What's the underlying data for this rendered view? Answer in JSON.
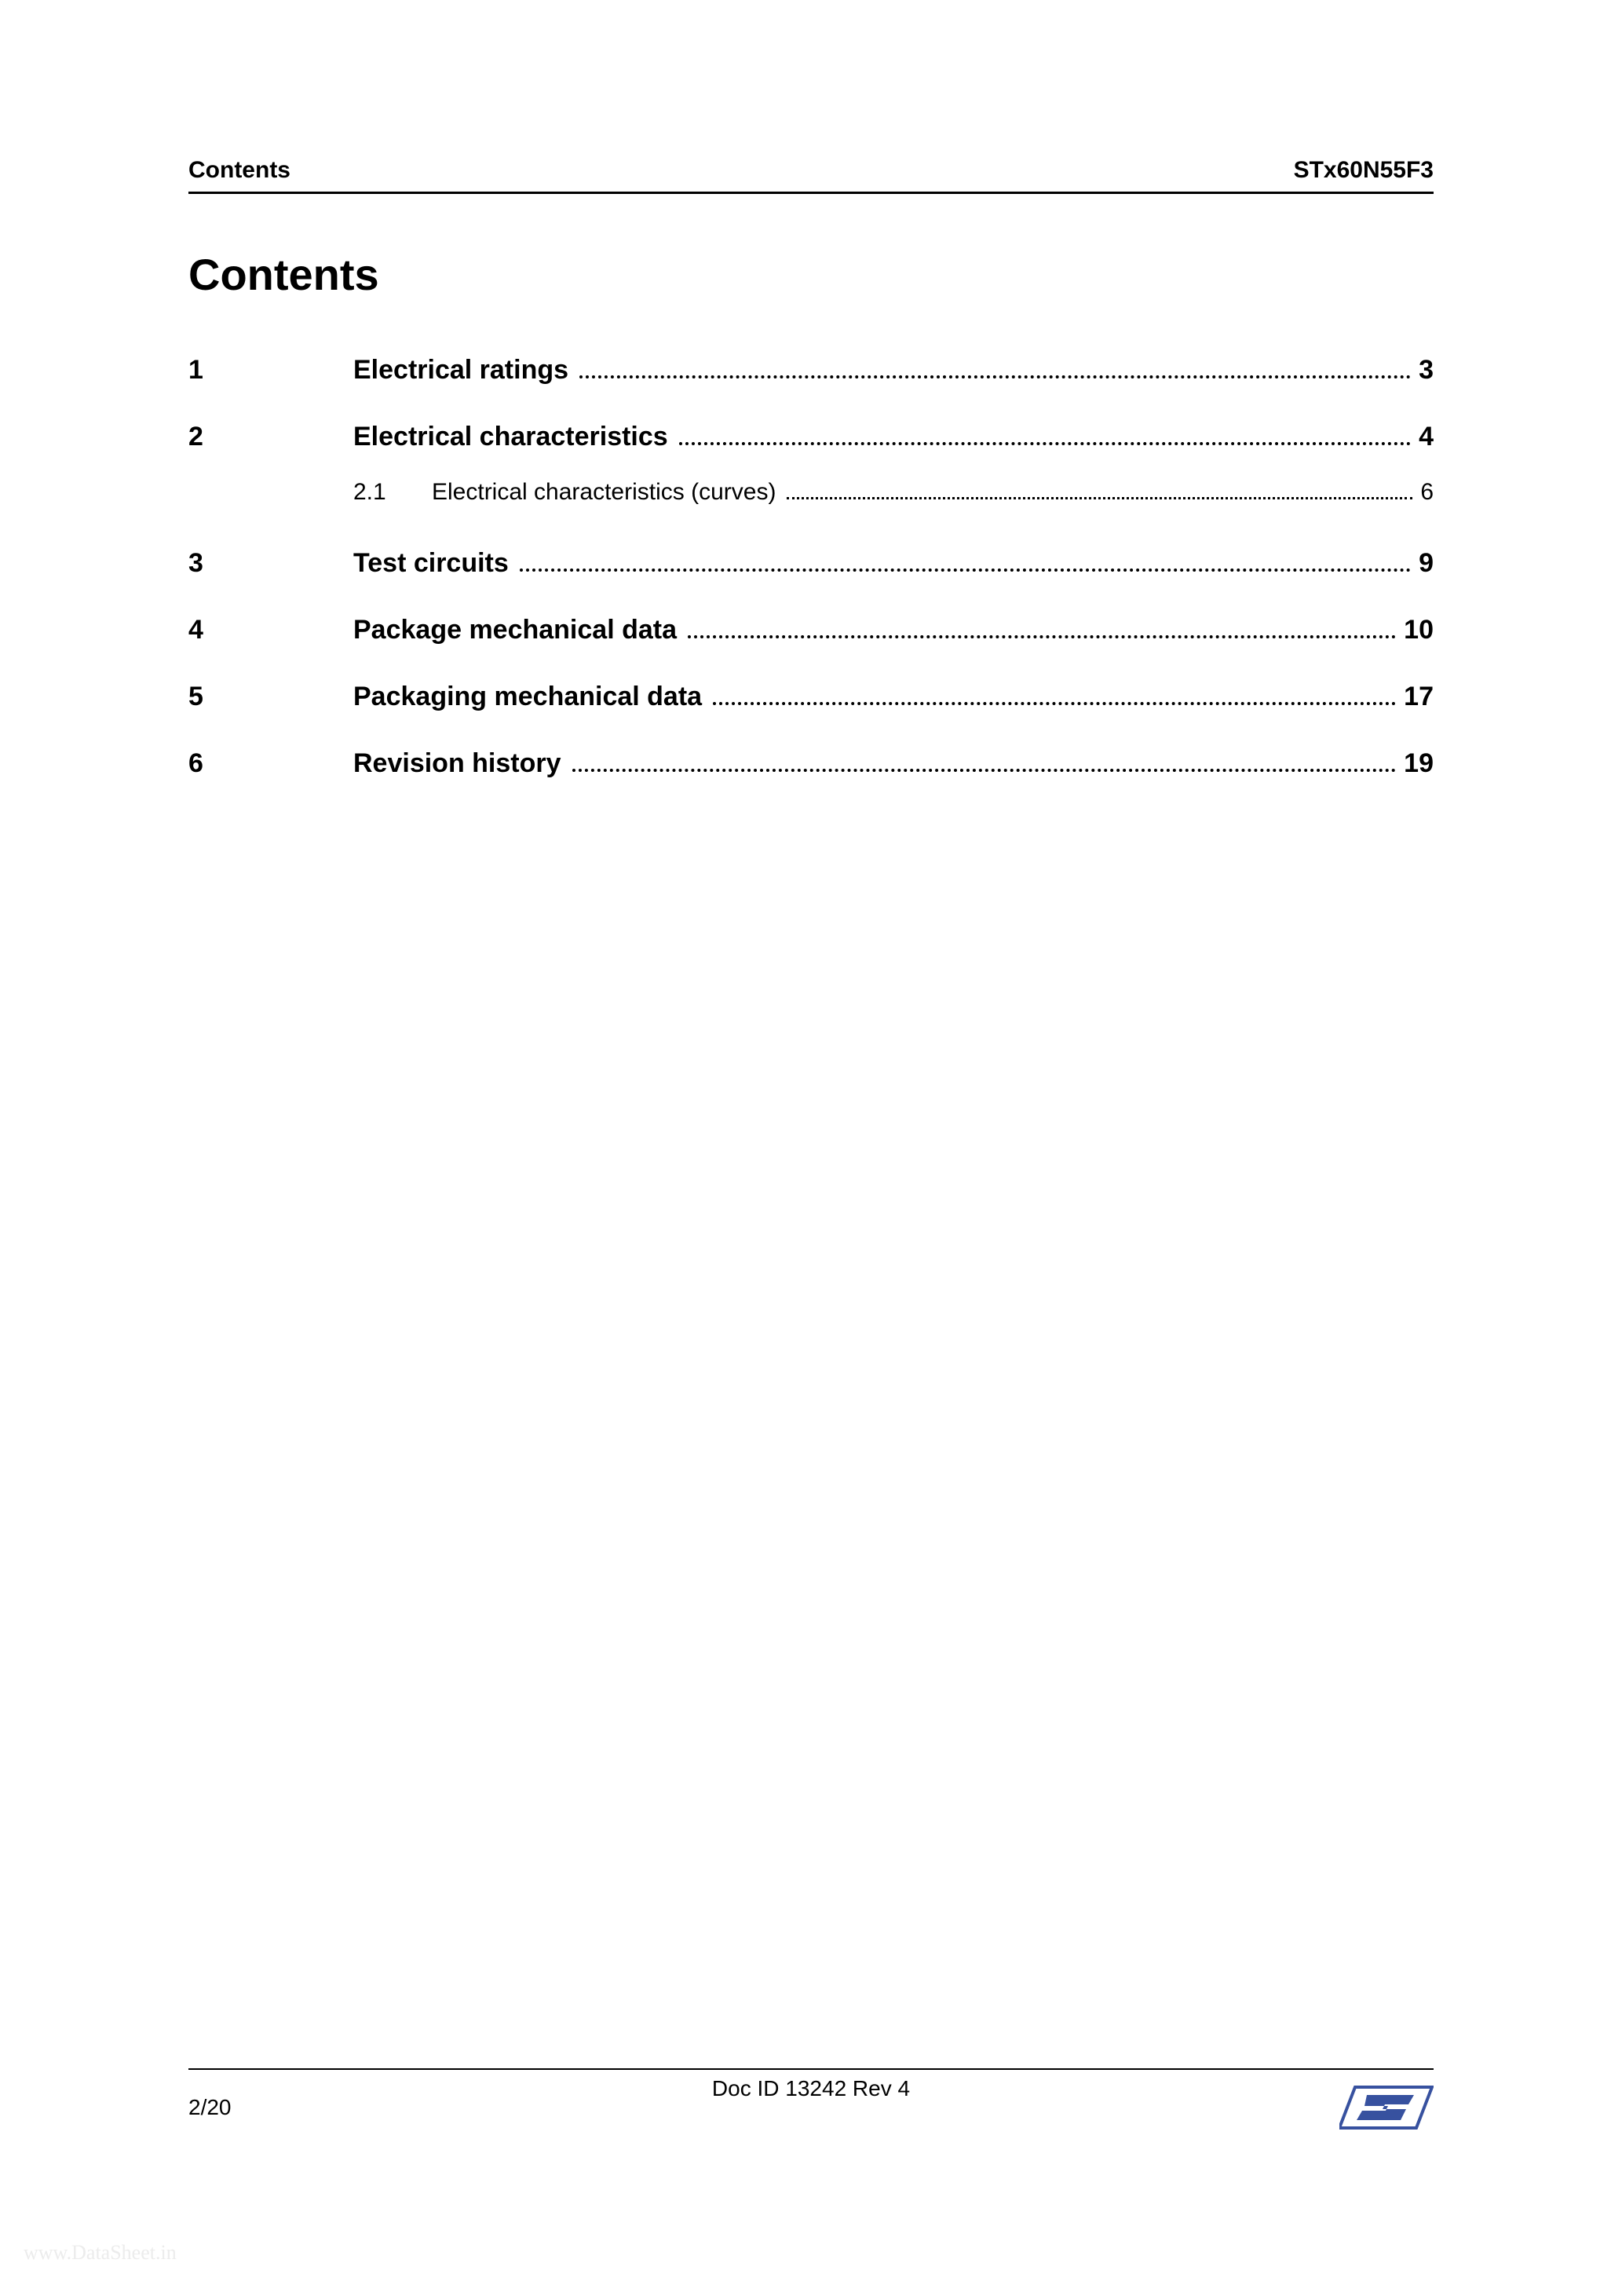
{
  "header": {
    "left": "Contents",
    "right": "STx60N55F3"
  },
  "title": "Contents",
  "toc": [
    {
      "num": "1",
      "text": "Electrical ratings",
      "page": "3"
    },
    {
      "num": "2",
      "text": "Electrical characteristics",
      "page": "4",
      "sub": [
        {
          "num": "2.1",
          "text": "Electrical characteristics (curves)",
          "page": "6"
        }
      ]
    },
    {
      "num": "3",
      "text": "Test circuits",
      "page": "9"
    },
    {
      "num": "4",
      "text": "Package mechanical data",
      "page": "10"
    },
    {
      "num": "5",
      "text": "Packaging mechanical data",
      "page": "17"
    },
    {
      "num": "6",
      "text": "Revision history",
      "page": "19"
    }
  ],
  "footer": {
    "left": "2/20",
    "center": "Doc ID 13242 Rev 4"
  },
  "watermark": "www.DataSheet.in",
  "logo": {
    "bg_fill": "#ffffff",
    "stroke": "#37519f",
    "fill": "#37519f"
  }
}
